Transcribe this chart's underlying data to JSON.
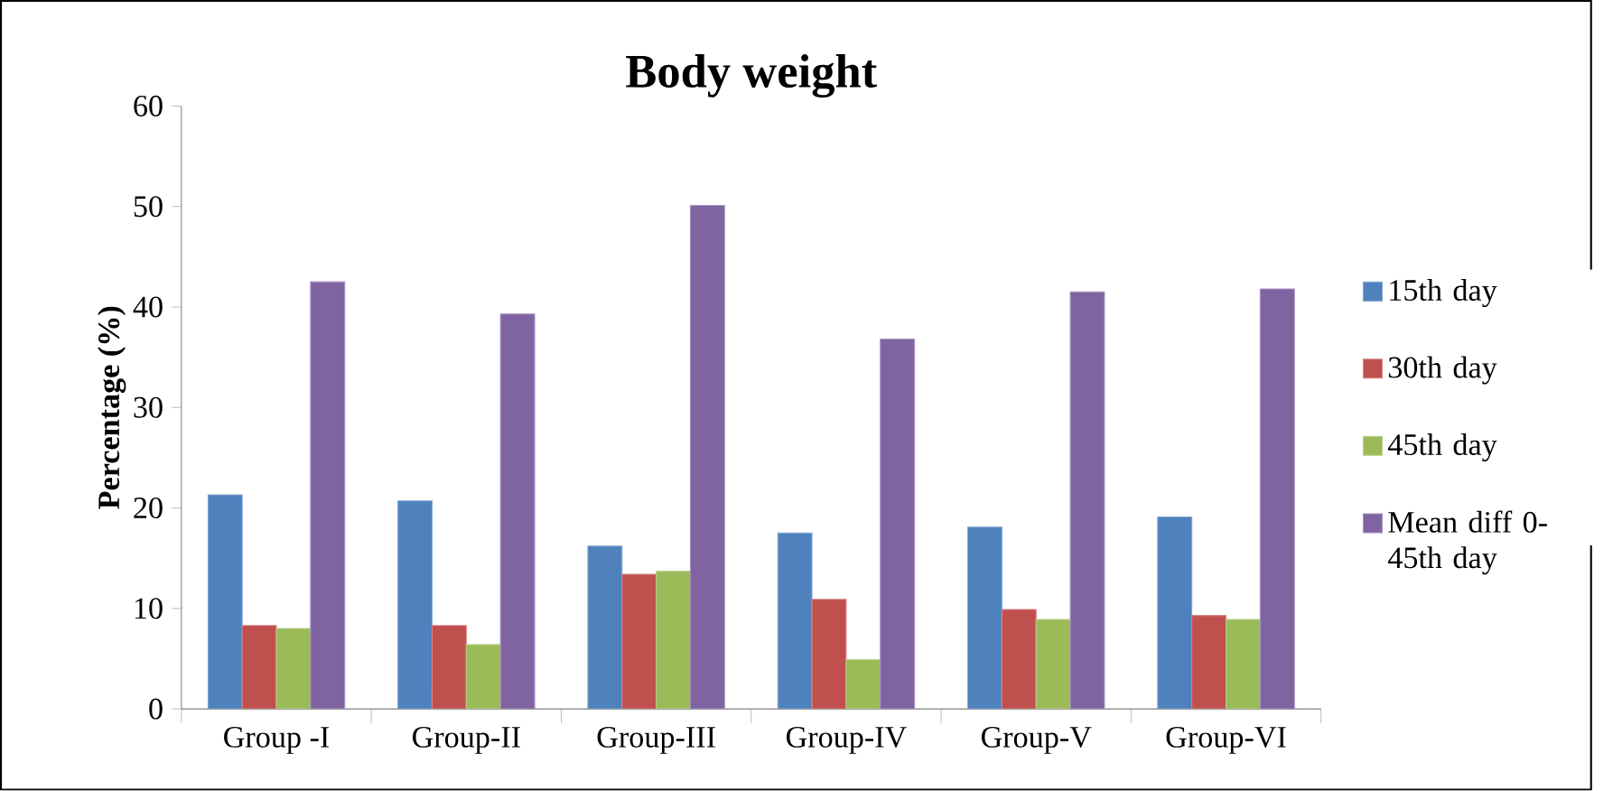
{
  "chart_data": {
    "type": "bar",
    "title": "Body weight",
    "ylabel": "Percentage  (%)",
    "categories": [
      "Group -I",
      "Group-II",
      "Group-III",
      "Group-IV",
      "Group-V",
      "Group-VI"
    ],
    "series": [
      {
        "name": "15th day",
        "color": "#4f81bd",
        "values": [
          21.3,
          20.7,
          16.2,
          17.5,
          18.1,
          19.1
        ]
      },
      {
        "name": "30th day",
        "color": "#c0504d",
        "values": [
          8.3,
          8.3,
          13.4,
          10.9,
          9.9,
          9.3
        ]
      },
      {
        "name": "45th day",
        "color": "#9bbb59",
        "values": [
          8.0,
          6.4,
          13.7,
          4.9,
          8.9,
          8.9
        ]
      },
      {
        "name": "Mean diff 0-45th day",
        "color": "#8064a2",
        "values": [
          42.5,
          39.3,
          50.1,
          36.8,
          41.5,
          41.8
        ]
      }
    ],
    "ylim": [
      0,
      60
    ],
    "yticks": [
      0,
      10,
      20,
      30,
      40,
      50,
      60
    ],
    "grid": false,
    "legend": "right"
  }
}
